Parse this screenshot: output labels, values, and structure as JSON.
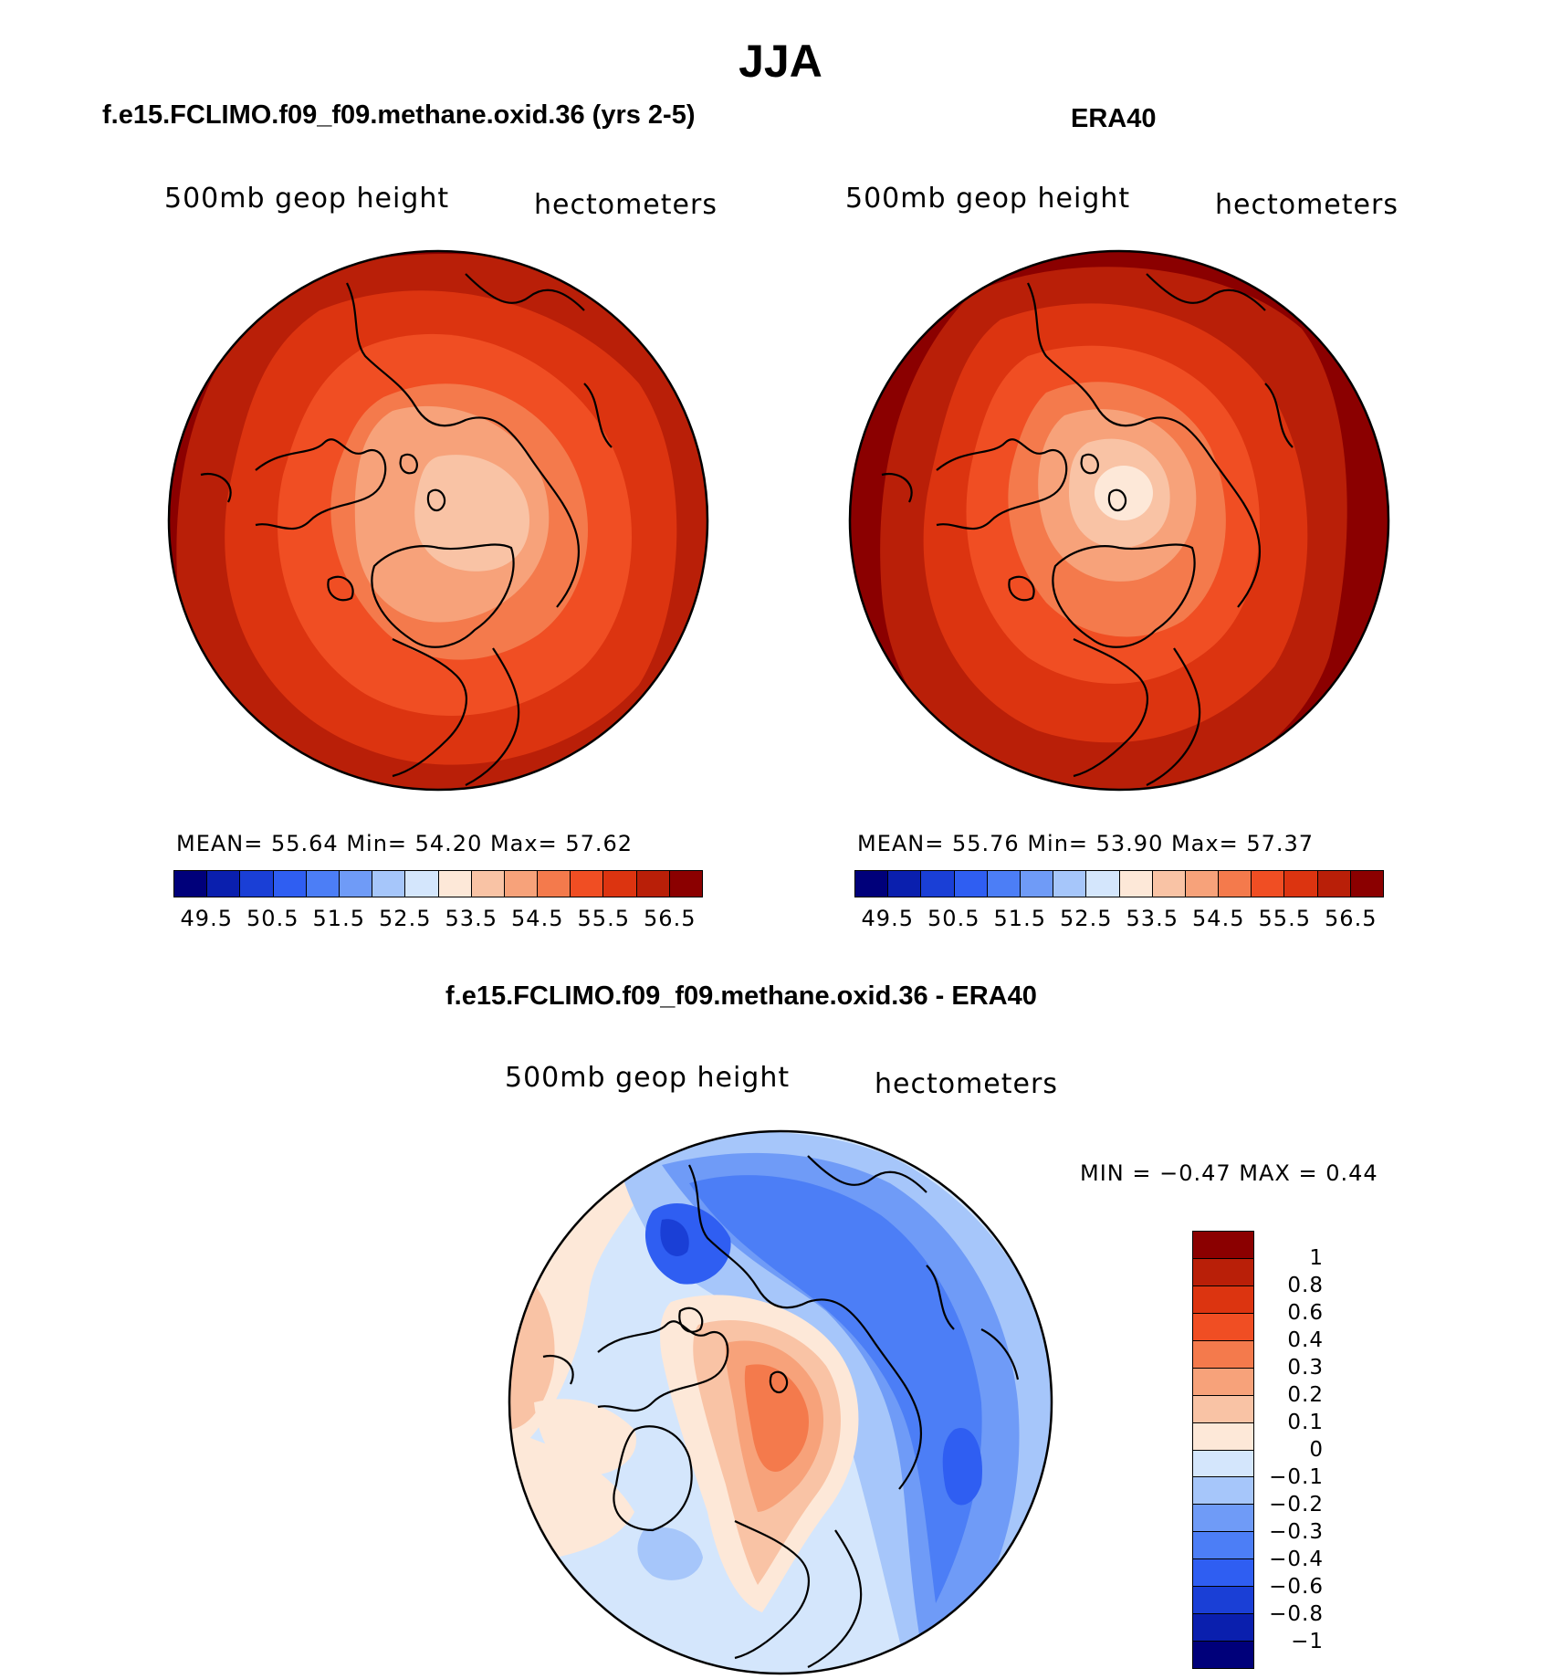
{
  "main_title": "JJA",
  "left_panel": {
    "title": "f.e15.FCLIMO.f09_f09.methane.oxid.36 (yrs 2-5)",
    "var_label": "500mb geop height",
    "unit_label": "hectometers",
    "stats": "MEAN=   55.64   Min=   54.20   Max=   57.62"
  },
  "right_panel": {
    "title": "ERA40",
    "var_label": "500mb geop height",
    "unit_label": "hectometers",
    "stats": "MEAN=   55.76   Min=   53.90   Max=   57.37"
  },
  "diff_panel": {
    "title": "f.e15.FCLIMO.f09_f09.methane.oxid.36 - ERA40",
    "var_label": "500mb geop height",
    "unit_label": "hectometers",
    "stats": "MIN =   −0.47  MAX =     0.44"
  },
  "colorbar_abs": {
    "colors": [
      "#00007a",
      "#0a1fae",
      "#1a3fd6",
      "#2f5ef2",
      "#4c7ef6",
      "#6f9bf7",
      "#a6c6fa",
      "#d4e6fc",
      "#fde8d8",
      "#f9c3a5",
      "#f7a27a",
      "#f47a4c",
      "#f04e23",
      "#dc3410",
      "#b91f08",
      "#8b0000"
    ],
    "ticks": [
      "49.5",
      "50.5",
      "51.5",
      "52.5",
      "53.5",
      "54.5",
      "55.5",
      "56.5"
    ]
  },
  "colorbar_diff": {
    "colors": [
      "#8b0000",
      "#b91f08",
      "#dc3410",
      "#f04e23",
      "#f47a4c",
      "#f7a27a",
      "#f9c3a5",
      "#fde8d8",
      "#d4e6fc",
      "#a6c6fa",
      "#6f9bf7",
      "#4c7ef6",
      "#2f5ef2",
      "#1a3fd6",
      "#0a1fae",
      "#00007a"
    ],
    "ticks": [
      "1",
      "0.8",
      "0.6",
      "0.4",
      "0.3",
      "0.2",
      "0.1",
      "0",
      "−0.1",
      "−0.2",
      "−0.3",
      "−0.4",
      "−0.6",
      "−0.8",
      "−1"
    ]
  },
  "colors": {
    "level_56_5": "#8b0000",
    "level_56": "#b91f08",
    "level_55_5": "#dc3410",
    "level_55": "#f04e23",
    "level_54_5": "#f47a4c",
    "level_54": "#f7a27a",
    "level_53_5": "#f9c3a5",
    "diff_pos_03": "#f47a4c",
    "diff_pos_02": "#f7a27a",
    "diff_pos_01": "#f9c3a5",
    "diff_zero_pos": "#fde8d8",
    "diff_zero_neg": "#d4e6fc",
    "diff_neg_01": "#a6c6fa",
    "diff_neg_02": "#6f9bf7",
    "diff_neg_03": "#4c7ef6",
    "diff_neg_04": "#2f5ef2"
  }
}
